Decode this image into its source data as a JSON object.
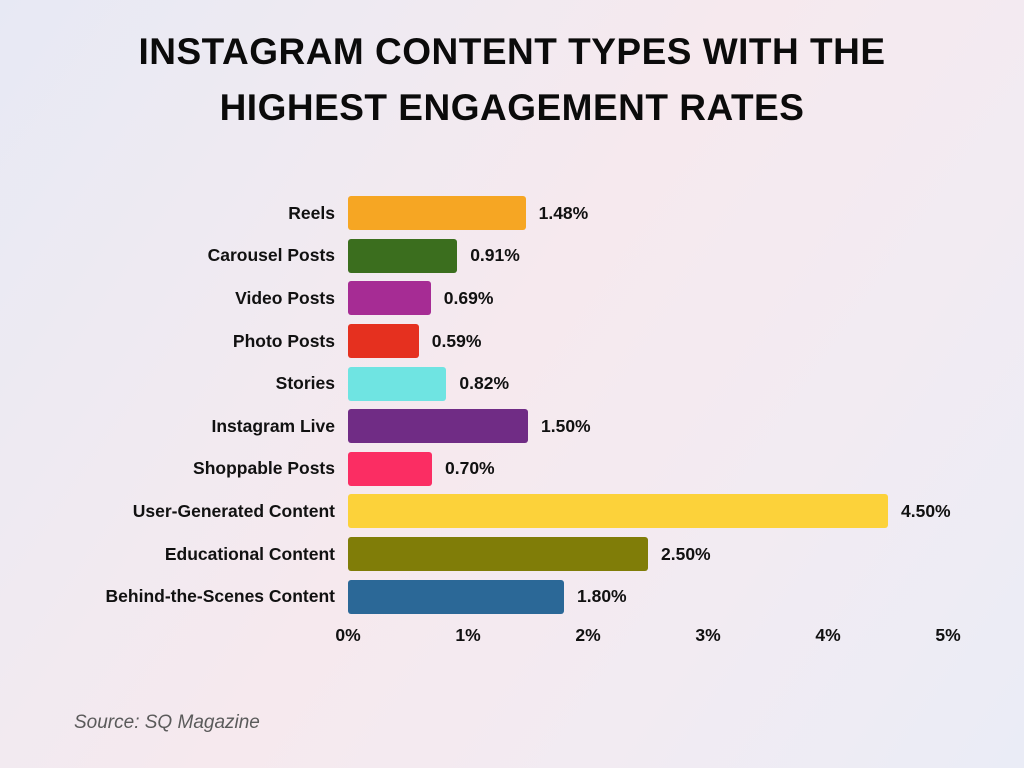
{
  "title": {
    "line1": "INSTAGRAM CONTENT TYPES WITH THE",
    "line2": "HIGHEST ENGAGEMENT RATES"
  },
  "source": "Source: SQ Magazine",
  "chart_data": {
    "type": "bar",
    "orientation": "horizontal",
    "title": "INSTAGRAM CONTENT TYPES WITH THE HIGHEST ENGAGEMENT RATES",
    "categories": [
      "Reels",
      "Carousel Posts",
      "Video Posts",
      "Photo Posts",
      "Stories",
      "Instagram Live",
      "Shoppable Posts",
      "User-Generated Content",
      "Educational Content",
      "Behind-the-Scenes Content"
    ],
    "values": [
      1.48,
      0.91,
      0.69,
      0.59,
      0.82,
      1.5,
      0.7,
      4.5,
      2.5,
      1.8
    ],
    "value_labels": [
      "1.48%",
      "0.91%",
      "0.69%",
      "0.59%",
      "0.82%",
      "1.50%",
      "0.70%",
      "4.50%",
      "2.50%",
      "1.80%"
    ],
    "bar_colors": [
      "#F6A623",
      "#3B6E1E",
      "#A62C94",
      "#E5301F",
      "#6FE4E2",
      "#702C85",
      "#FB2D63",
      "#FCD23A",
      "#807D08",
      "#2B6897"
    ],
    "xlabel": "",
    "ylabel": "",
    "xlim": [
      0,
      5
    ],
    "xtick_labels": [
      "0%",
      "1%",
      "2%",
      "3%",
      "4%",
      "5%"
    ],
    "xtick_values": [
      0,
      1,
      2,
      3,
      4,
      5
    ],
    "grid": false,
    "legend": false
  }
}
